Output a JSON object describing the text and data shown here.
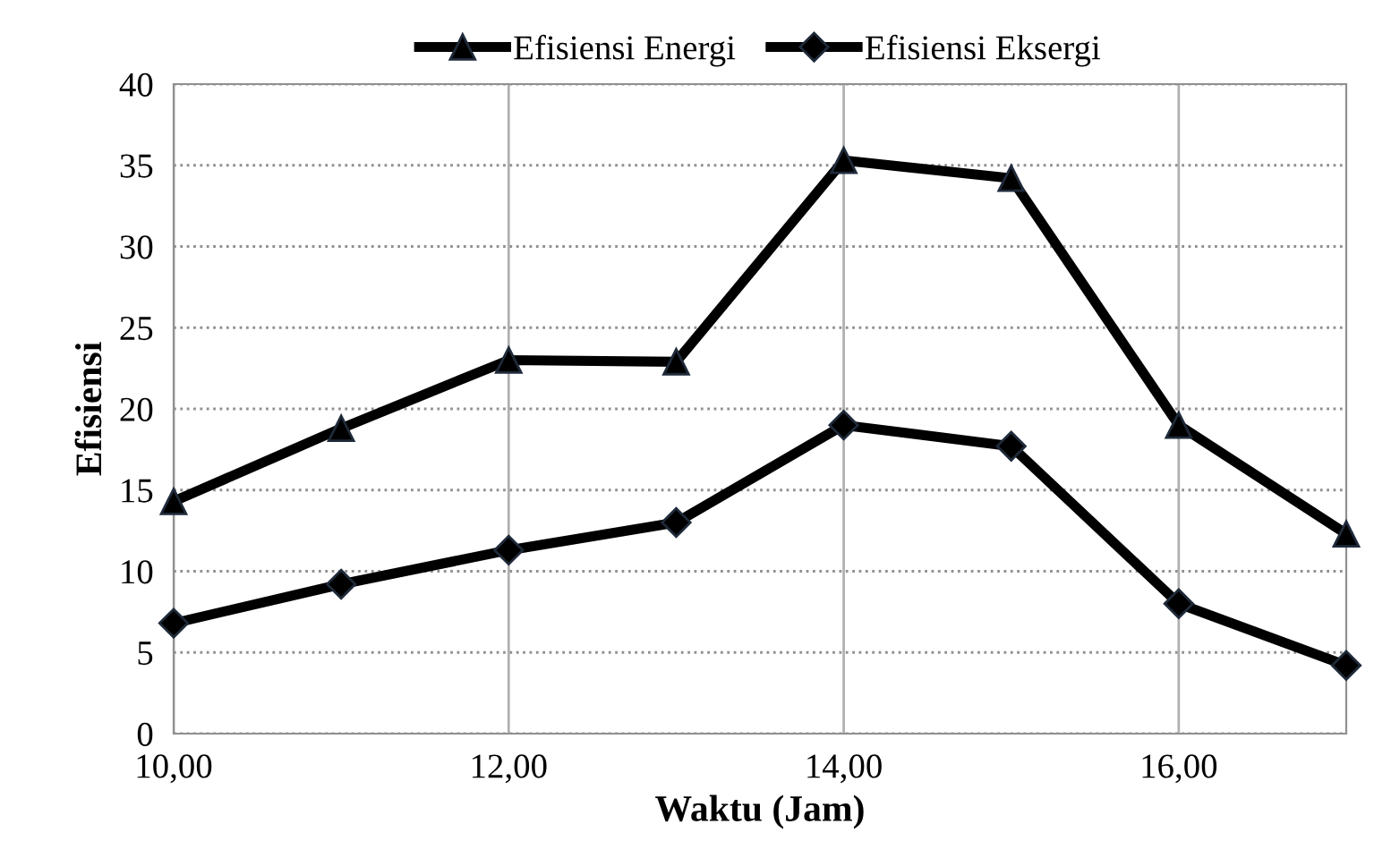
{
  "chart_data": {
    "type": "line",
    "xlabel": "Waktu (Jam)",
    "ylabel": "Efisiensi",
    "x": [
      10,
      11,
      12,
      13,
      14,
      15,
      16,
      17
    ],
    "series": [
      {
        "name": "Efisiensi Energi",
        "color": "#000000",
        "marker": "triangle",
        "values": [
          14.3,
          18.8,
          23,
          22.9,
          35.3,
          34.2,
          19,
          12.3
        ]
      },
      {
        "name": "Efisiensi Eksergi",
        "color": "#000000",
        "marker": "diamond",
        "values": [
          6.8,
          9.2,
          11.3,
          13,
          19,
          17.7,
          8,
          4.2
        ]
      }
    ],
    "xlim": [
      10,
      17
    ],
    "xticks": [
      {
        "value": 10,
        "label": "10,00"
      },
      {
        "value": 12,
        "label": "12,00"
      },
      {
        "value": 14,
        "label": "14,00"
      },
      {
        "value": 16,
        "label": "16,00"
      }
    ],
    "ylim": [
      0,
      40
    ],
    "yticks": [
      0,
      5,
      10,
      15,
      20,
      25,
      30,
      35,
      40
    ],
    "grid": true,
    "legend": "top"
  }
}
